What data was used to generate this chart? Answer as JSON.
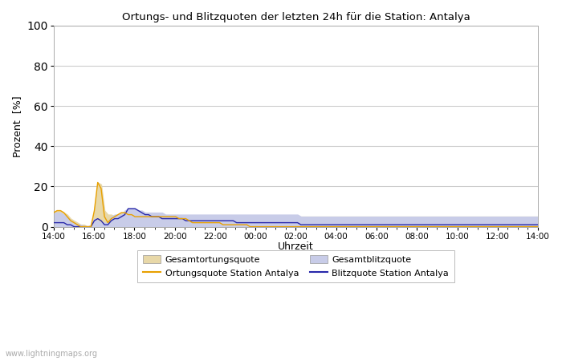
{
  "title": "Ortungs- und Blitzquoten der letzten 24h für die Station: Antalya",
  "xlabel": "Uhrzeit",
  "ylabel": "Prozent  [%]",
  "ylim": [
    0,
    100
  ],
  "yticks": [
    0,
    20,
    40,
    60,
    80,
    100
  ],
  "x_labels": [
    "14:00",
    "16:00",
    "18:00",
    "20:00",
    "22:00",
    "00:00",
    "02:00",
    "04:00",
    "06:00",
    "08:00",
    "10:00",
    "12:00",
    "14:00"
  ],
  "background_color": "#ffffff",
  "plot_bg_color": "#ffffff",
  "watermark": "www.lightningmaps.org",
  "legend_labels": [
    "Gesamtortungsquote",
    "Ortungsquote Station Antalya",
    "Gesamtblitzquote",
    "Blitzquote Station Antalya"
  ],
  "fill_ortung_color": "#e8d8a8",
  "fill_blitz_color": "#c8cce8",
  "line_ortung_color": "#e8a000",
  "line_blitz_color": "#2828aa",
  "ortungsquote_global": [
    7,
    8,
    8,
    7,
    6,
    4,
    3,
    2,
    1,
    1,
    0,
    1,
    8,
    22,
    21,
    8,
    6,
    6,
    5,
    6,
    7,
    7,
    6,
    6,
    5,
    5,
    5,
    5,
    5,
    5,
    5,
    5,
    5,
    5,
    5,
    5,
    5,
    5,
    5,
    5,
    5,
    5,
    5,
    5,
    5,
    5,
    5,
    5,
    5,
    5,
    5,
    5,
    5,
    5,
    5,
    5,
    5,
    5,
    5,
    5,
    5,
    5,
    5,
    5,
    5,
    5,
    5,
    5,
    5,
    5,
    5,
    5,
    5,
    5,
    5,
    5,
    5,
    5,
    5,
    5,
    5,
    5,
    5,
    5,
    5,
    5,
    5,
    5,
    5,
    5,
    5,
    5,
    5,
    5,
    5,
    5,
    5,
    5,
    5,
    5,
    5,
    5,
    5,
    5,
    5,
    5,
    5,
    5,
    5,
    5,
    5,
    5,
    5,
    5,
    5,
    5,
    5,
    5,
    5,
    5,
    5,
    5,
    5,
    5,
    5,
    5,
    5,
    5,
    5,
    5,
    5,
    5,
    5,
    5,
    5,
    5,
    5,
    5,
    5,
    5,
    5,
    5,
    5,
    5
  ],
  "ortungsquote_station": [
    7,
    8,
    8,
    7,
    5,
    3,
    2,
    1,
    0,
    0,
    0,
    0,
    8,
    22,
    19,
    5,
    2,
    4,
    5,
    6,
    7,
    7,
    6,
    6,
    5,
    5,
    5,
    5,
    5,
    5,
    5,
    5,
    5,
    5,
    5,
    5,
    5,
    4,
    4,
    4,
    3,
    2,
    2,
    2,
    2,
    2,
    2,
    2,
    2,
    2,
    1,
    1,
    1,
    1,
    1,
    1,
    1,
    1,
    0,
    0,
    0,
    0,
    0,
    0,
    0,
    0,
    0,
    0,
    0,
    0,
    0,
    0,
    0,
    0,
    0,
    0,
    0,
    0,
    0,
    0,
    0,
    0,
    0,
    0,
    0,
    0,
    0,
    0,
    0,
    0,
    0,
    0,
    0,
    0,
    0,
    0,
    0,
    0,
    0,
    0,
    0,
    0,
    0,
    0,
    0,
    0,
    0,
    0,
    0,
    0,
    0,
    0,
    0,
    0,
    0,
    0,
    0,
    0,
    0,
    0,
    0,
    0,
    0,
    0,
    0,
    0,
    0,
    0,
    0,
    0,
    0,
    0,
    0,
    0,
    0,
    0,
    0,
    0,
    0,
    0,
    0,
    0,
    0,
    0
  ],
  "blitzquote_global": [
    7,
    7,
    7,
    6,
    5,
    3,
    2,
    1,
    1,
    0,
    0,
    0,
    4,
    3,
    2,
    2,
    2,
    5,
    6,
    6,
    6,
    8,
    9,
    9,
    9,
    8,
    8,
    7,
    7,
    7,
    7,
    7,
    7,
    6,
    6,
    6,
    6,
    6,
    6,
    6,
    6,
    6,
    6,
    6,
    6,
    6,
    6,
    6,
    6,
    6,
    6,
    6,
    6,
    6,
    6,
    6,
    6,
    6,
    6,
    6,
    6,
    6,
    6,
    6,
    6,
    6,
    6,
    6,
    6,
    6,
    6,
    6,
    6,
    5,
    5,
    5,
    5,
    5,
    5,
    5,
    5,
    5,
    5,
    5,
    5,
    5,
    5,
    5,
    5,
    5,
    5,
    5,
    5,
    5,
    5,
    5,
    5,
    5,
    5,
    5,
    5,
    5,
    5,
    5,
    5,
    5,
    5,
    5,
    5,
    5,
    5,
    5,
    5,
    5,
    5,
    5,
    5,
    5,
    5,
    5,
    5,
    5,
    5,
    5,
    5,
    5,
    5,
    5,
    5,
    5,
    5,
    5,
    5,
    5,
    5,
    5,
    5,
    5,
    5,
    5,
    5,
    5,
    5,
    5
  ],
  "blitzquote_station": [
    2,
    2,
    2,
    2,
    1,
    1,
    0,
    0,
    0,
    0,
    0,
    0,
    3,
    4,
    3,
    1,
    1,
    3,
    4,
    4,
    5,
    6,
    9,
    9,
    9,
    8,
    7,
    6,
    6,
    5,
    5,
    5,
    4,
    4,
    4,
    4,
    4,
    4,
    4,
    3,
    3,
    3,
    3,
    3,
    3,
    3,
    3,
    3,
    3,
    3,
    3,
    3,
    3,
    3,
    2,
    2,
    2,
    2,
    2,
    2,
    2,
    2,
    2,
    2,
    2,
    2,
    2,
    2,
    2,
    2,
    2,
    2,
    2,
    1,
    1,
    1,
    1,
    1,
    1,
    1,
    1,
    1,
    1,
    1,
    1,
    1,
    1,
    1,
    1,
    1,
    1,
    1,
    1,
    1,
    1,
    1,
    1,
    1,
    1,
    1,
    1,
    1,
    1,
    1,
    1,
    1,
    1,
    1,
    1,
    1,
    1,
    1,
    1,
    1,
    1,
    1,
    1,
    1,
    1,
    1,
    1,
    1,
    1,
    1,
    1,
    1,
    1,
    1,
    1,
    1,
    1,
    1,
    1,
    1,
    1,
    1,
    1,
    1,
    1,
    1,
    1,
    1,
    1,
    1
  ]
}
